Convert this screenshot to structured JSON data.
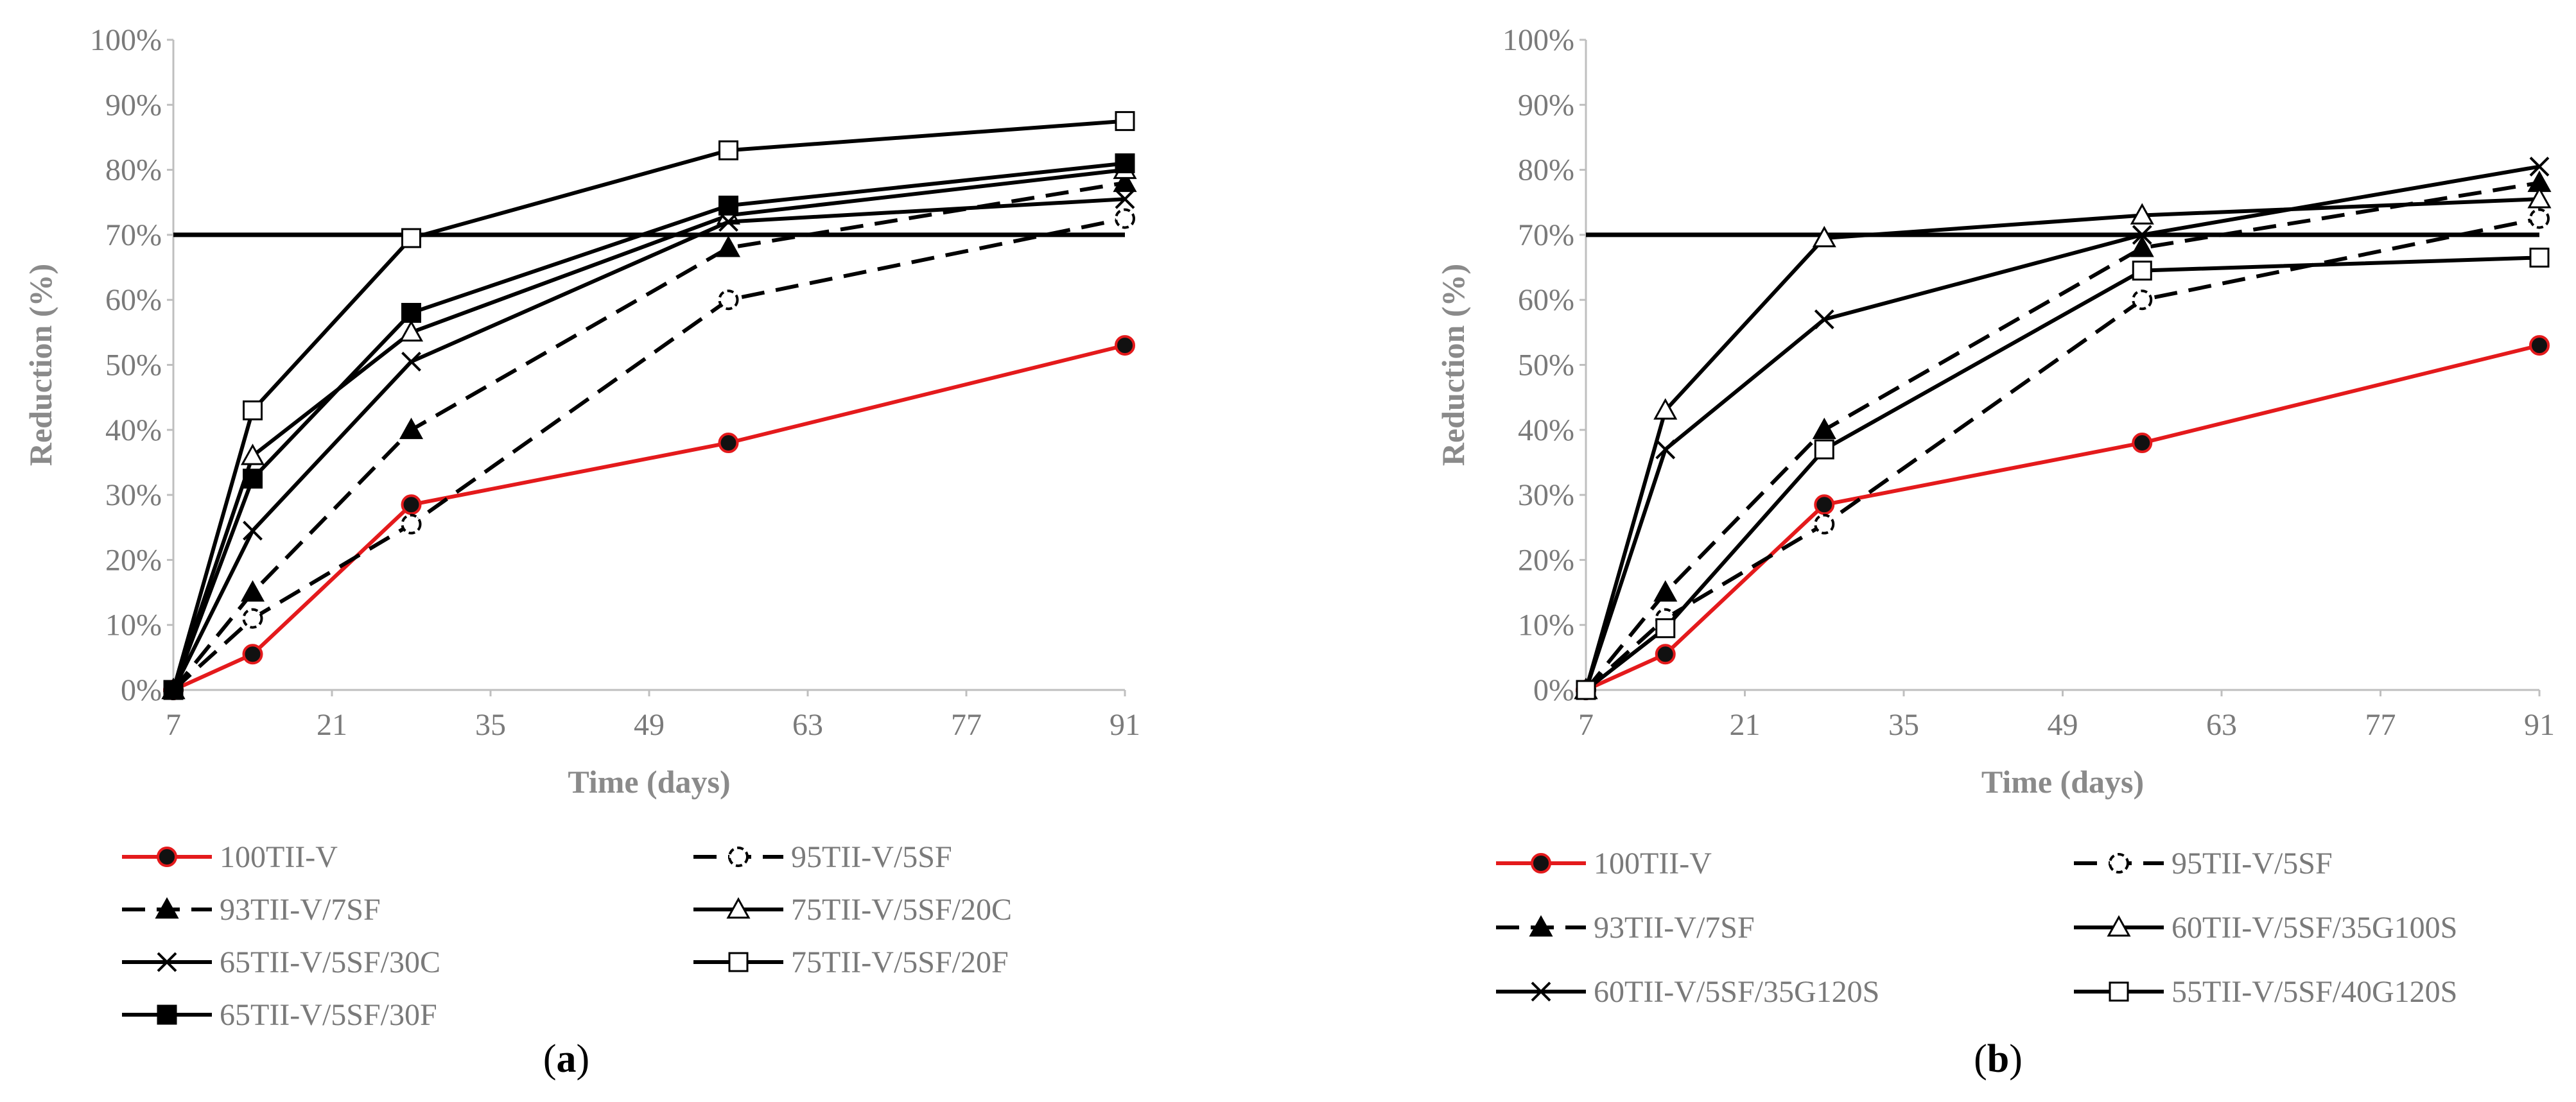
{
  "chart_data": [
    {
      "type": "line",
      "caption_open": "(",
      "caption_letter": "a",
      "caption_close": ")",
      "xlabel": "Time (days)",
      "ylabel": "Reduction (%)",
      "xlim": [
        7,
        91
      ],
      "ylim": [
        0,
        100
      ],
      "x_ticks": [
        "7",
        "21",
        "35",
        "49",
        "63",
        "77",
        "91"
      ],
      "y_ticks": [
        "0%",
        "10%",
        "20%",
        "30%",
        "40%",
        "50%",
        "60%",
        "70%",
        "80%",
        "90%",
        "100%"
      ],
      "threshold": 70,
      "x": [
        7,
        14,
        28,
        56,
        91
      ],
      "series": [
        {
          "name": "100TII-V",
          "values": [
            0,
            5.5,
            28.5,
            38,
            53
          ],
          "marker": "circle-filled",
          "color": "#e41a1c",
          "dash": false
        },
        {
          "name": "95TII-V/5SF",
          "values": [
            0,
            11,
            25.5,
            60,
            72.5
          ],
          "marker": "circle-open",
          "color": "#000000",
          "dash": true
        },
        {
          "name": "93TII-V/7SF",
          "values": [
            0,
            15,
            40,
            68,
            78
          ],
          "marker": "triangle-filled",
          "color": "#000000",
          "dash": true
        },
        {
          "name": "75TII-V/5SF/20C",
          "values": [
            0,
            36,
            55,
            73,
            80
          ],
          "marker": "triangle-open",
          "color": "#000000",
          "dash": false
        },
        {
          "name": "65TII-V/5SF/30C",
          "values": [
            0,
            24.5,
            50.5,
            72,
            75.5
          ],
          "marker": "x",
          "color": "#000000",
          "dash": false
        },
        {
          "name": "75TII-V/5SF/20F",
          "values": [
            0,
            43,
            69.5,
            83,
            87.5
          ],
          "marker": "square-open",
          "color": "#000000",
          "dash": false
        },
        {
          "name": "65TII-V/5SF/30F",
          "values": [
            0,
            32.5,
            58,
            74.5,
            81
          ],
          "marker": "square-filled",
          "color": "#000000",
          "dash": false
        }
      ]
    },
    {
      "type": "line",
      "caption_open": "(",
      "caption_letter": "b",
      "caption_close": ")",
      "xlabel": "Time (days)",
      "ylabel": "Reduction (%)",
      "xlim": [
        7,
        91
      ],
      "ylim": [
        0,
        100
      ],
      "x_ticks": [
        "7",
        "21",
        "35",
        "49",
        "63",
        "77",
        "91"
      ],
      "y_ticks": [
        "0%",
        "10%",
        "20%",
        "30%",
        "40%",
        "50%",
        "60%",
        "70%",
        "80%",
        "90%",
        "100%"
      ],
      "threshold": 70,
      "x": [
        7,
        14,
        28,
        56,
        91
      ],
      "series": [
        {
          "name": "100TII-V",
          "values": [
            0,
            5.5,
            28.5,
            38,
            53
          ],
          "marker": "circle-filled",
          "color": "#e41a1c",
          "dash": false
        },
        {
          "name": "95TII-V/5SF",
          "values": [
            0,
            11,
            25.5,
            60,
            72.5
          ],
          "marker": "circle-open",
          "color": "#000000",
          "dash": true
        },
        {
          "name": "93TII-V/7SF",
          "values": [
            0,
            15,
            40,
            68,
            78
          ],
          "marker": "triangle-filled",
          "color": "#000000",
          "dash": true
        },
        {
          "name": "60TII-V/5SF/35G100S",
          "values": [
            0,
            43,
            69.5,
            73,
            75.5
          ],
          "marker": "triangle-open",
          "color": "#000000",
          "dash": false
        },
        {
          "name": "60TII-V/5SF/35G120S",
          "values": [
            0,
            37,
            57,
            70,
            80.5
          ],
          "marker": "x",
          "color": "#000000",
          "dash": false
        },
        {
          "name": "55TII-V/5SF/40G120S",
          "values": [
            0,
            9.5,
            37,
            64.5,
            66.5
          ],
          "marker": "square-open",
          "color": "#000000",
          "dash": false
        }
      ]
    }
  ]
}
